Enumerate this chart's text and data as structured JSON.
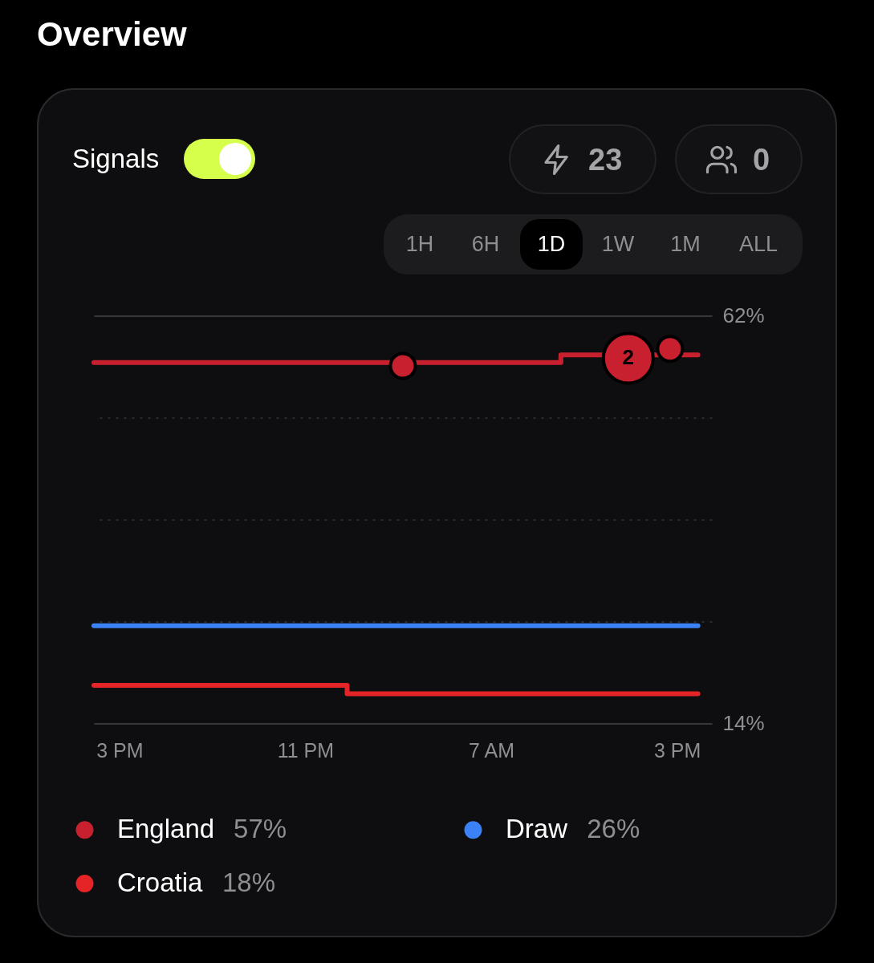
{
  "chart_data": {
    "type": "step",
    "title": "Overview",
    "xlim": [
      "--06-15T13:54",
      "--06-16T16:30"
    ],
    "xticks": [
      {
        "value": "--06-15T15:00",
        "label": "3 PM"
      },
      {
        "value": "--06-15T23:00",
        "label": "11 PM"
      },
      {
        "value": "--06-16T07:00",
        "label": "7 AM"
      },
      {
        "value": "--06-16T15:00",
        "label": "3 PM"
      }
    ],
    "ylim": [
      14,
      62
    ],
    "yticks": [
      {
        "value": 62,
        "label": "62%"
      },
      {
        "value": 50,
        "label": null
      },
      {
        "value": 38,
        "label": null
      },
      {
        "value": 26,
        "label": null
      },
      {
        "value": 14,
        "label": "14%"
      }
    ],
    "grid": "y",
    "legend": "bottom",
    "series": [
      {
        "name": "England",
        "color": "#c8202f",
        "x": [
          "--06-15T13:54",
          "--06-16T10:00",
          "--06-16T15:54"
        ],
        "values": [
          56.5,
          57.4,
          57.4
        ]
      },
      {
        "name": "Draw",
        "color": "#3b82f6",
        "x": [
          "--06-15T13:54",
          "--06-16T15:54"
        ],
        "values": [
          25.5,
          25.5
        ]
      },
      {
        "name": "Croatia",
        "color": "#e42427",
        "x": [
          "--06-15T13:54",
          "--06-16T00:48",
          "--06-16T15:54"
        ],
        "values": [
          18.5,
          17.5,
          17.5
        ]
      },
      {
        "type": "bubble",
        "color": "#c8202f",
        "x": [
          "--06-16T03:12",
          "--06-16T12:54",
          "--06-16T14:42"
        ],
        "values": [
          56.1,
          57.0,
          58.1
        ],
        "sizes": [
          0.25,
          1,
          0.25
        ]
      }
    ],
    "annotations": [
      "Signals",
      "23",
      "0",
      "1H",
      "6H",
      "1D",
      "1W",
      "1M",
      "ALL",
      "57%",
      "26%",
      "18%",
      {
        "text": "2",
        "x": "--06-16T12:54",
        "y": 57.0
      }
    ]
  }
}
